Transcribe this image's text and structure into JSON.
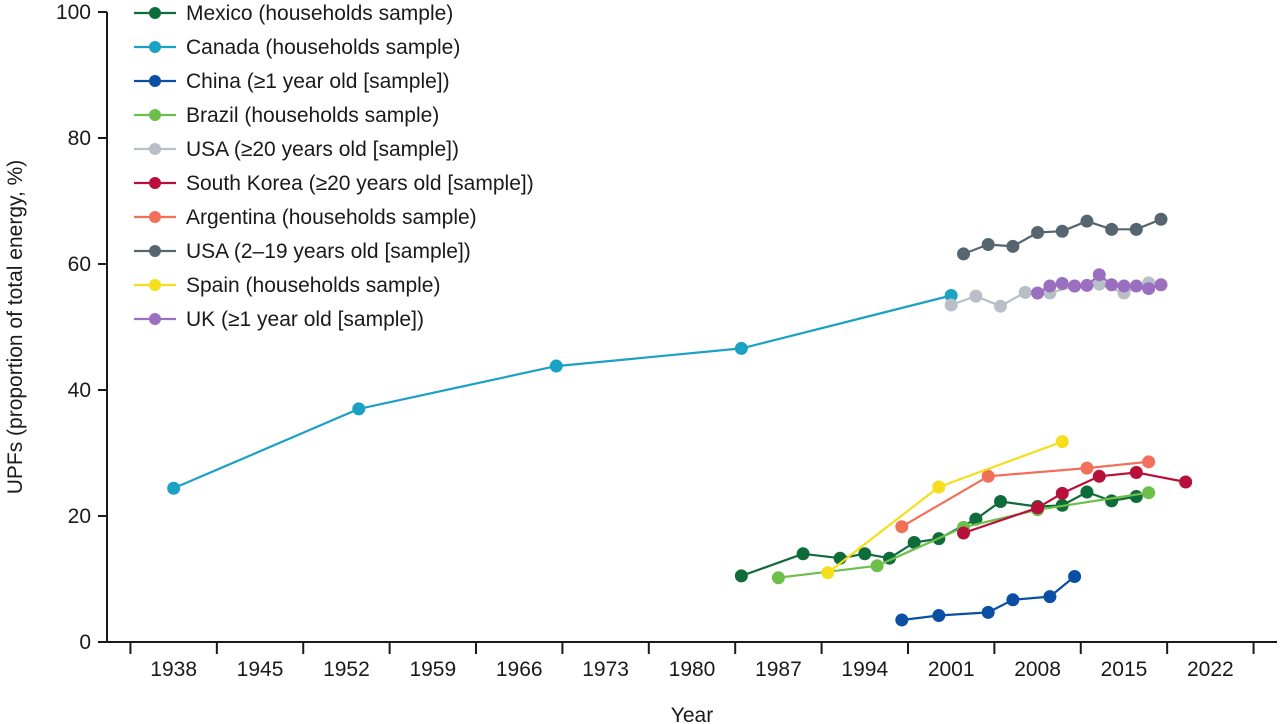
{
  "chart_data": {
    "type": "line",
    "xlabel": "Year",
    "ylabel": "UPFs (proportion of total energy, %)",
    "xlim": [
      1932.6,
      2027.4
    ],
    "ylim": [
      0,
      100
    ],
    "xticks": [
      1938,
      1945,
      1952,
      1959,
      1966,
      1973,
      1980,
      1987,
      1994,
      2001,
      2008,
      2015,
      2022
    ],
    "yticks": [
      0,
      20,
      40,
      60,
      80,
      100
    ],
    "grid": false,
    "legend_position": "top-left",
    "series": [
      {
        "name": "Mexico (households sample)",
        "color": "#0e6b3a",
        "x": [
          1984,
          1989,
          1992,
          1994,
          1996,
          1998,
          2000,
          2003,
          2005,
          2008,
          2010,
          2012,
          2014,
          2016
        ],
        "y": [
          10.5,
          14.0,
          13.3,
          14.0,
          13.3,
          15.8,
          16.4,
          19.5,
          22.3,
          21.5,
          21.7,
          23.8,
          22.4,
          23.1
        ]
      },
      {
        "name": "Canada (households sample)",
        "color": "#1aa1c4",
        "x": [
          1938,
          1953,
          1969,
          1984,
          2001
        ],
        "y": [
          24.4,
          37.0,
          43.8,
          46.6,
          55.0
        ]
      },
      {
        "name": "China (≥1 year old [sample])",
        "color": "#0a4fa3",
        "x": [
          1997,
          2000,
          2004,
          2006,
          2009,
          2011
        ],
        "y": [
          3.5,
          4.2,
          4.7,
          6.7,
          7.2,
          10.4
        ]
      },
      {
        "name": "Brazil (households sample)",
        "color": "#6cbf4a",
        "x": [
          1987,
          1995,
          2002,
          2008,
          2017
        ],
        "y": [
          10.2,
          12.1,
          18.2,
          21.0,
          23.7
        ]
      },
      {
        "name": "USA (≥20 years old [sample])",
        "color": "#b8bfc6",
        "x": [
          2001,
          2003,
          2005,
          2007,
          2009,
          2011,
          2013,
          2015,
          2017
        ],
        "y": [
          53.5,
          54.9,
          53.3,
          55.5,
          55.4,
          56.5,
          56.8,
          55.4,
          57.0
        ]
      },
      {
        "name": "South Korea (≥20 years old [sample])",
        "color": "#b8103a",
        "x": [
          2002,
          2008,
          2010,
          2013,
          2016,
          2020
        ],
        "y": [
          17.3,
          21.3,
          23.6,
          26.3,
          26.9,
          25.4
        ]
      },
      {
        "name": "Argentina (households sample)",
        "color": "#f0705a",
        "x": [
          1997,
          2004,
          2012,
          2017
        ],
        "y": [
          18.3,
          26.3,
          27.6,
          28.6
        ]
      },
      {
        "name": "USA (2–19 years old [sample])",
        "color": "#556670",
        "x": [
          2002,
          2004,
          2006,
          2008,
          2010,
          2012,
          2014,
          2016,
          2018
        ],
        "y": [
          61.6,
          63.1,
          62.8,
          65.0,
          65.2,
          66.8,
          65.5,
          65.5,
          67.1
        ]
      },
      {
        "name": "Spain (households sample)",
        "color": "#f5de1c",
        "x": [
          1991,
          2000,
          2010
        ],
        "y": [
          11.0,
          24.6,
          31.8
        ]
      },
      {
        "name": "UK (≥1 year old [sample])",
        "color": "#9b6fc0",
        "x": [
          2008,
          2009,
          2010,
          2011,
          2012,
          2013,
          2014,
          2015,
          2016,
          2017,
          2018
        ],
        "y": [
          55.4,
          56.5,
          56.9,
          56.5,
          56.6,
          58.3,
          56.7,
          56.5,
          56.5,
          56.1,
          56.7
        ]
      }
    ]
  }
}
